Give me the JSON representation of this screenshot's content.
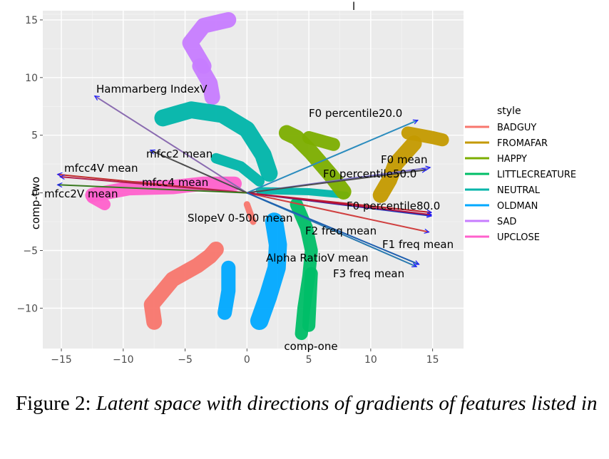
{
  "chart_data": {
    "type": "scatter",
    "xlabel": "comp-one",
    "ylabel": "comp-two",
    "xlim": [
      -16.5,
      17.5
    ],
    "ylim": [
      -13.5,
      15.8
    ],
    "xticks": [
      -15,
      -10,
      -5,
      0,
      5,
      10,
      15
    ],
    "yticks": [
      -10,
      -5,
      0,
      5,
      10,
      15
    ],
    "tick_labels_x": [
      "−15",
      "−10",
      "−5",
      "0",
      "5",
      "10",
      "15"
    ],
    "tick_labels_y": [
      "−10",
      "−5",
      "0",
      "5",
      "10",
      "15"
    ],
    "grid": true,
    "legend": {
      "title": "style",
      "position": "right",
      "entries": [
        {
          "name": "BADGUY",
          "color": "#F8766D"
        },
        {
          "name": "FROMAFAR",
          "color": "#C49A00"
        },
        {
          "name": "HAPPY",
          "color": "#7CAE00"
        },
        {
          "name": "LITTLECREATURE",
          "color": "#00BE67"
        },
        {
          "name": "NEUTRAL",
          "color": "#00B5AA"
        },
        {
          "name": "OLDMAN",
          "color": "#00A9FF"
        },
        {
          "name": "SAD",
          "color": "#C77CFF"
        },
        {
          "name": "UPCLOSE",
          "color": "#FF61CC"
        }
      ]
    },
    "clusters": [
      {
        "style": "SAD",
        "path": [
          [
            -3.5,
            11
          ],
          [
            -4.6,
            13
          ],
          [
            -3.5,
            14.5
          ],
          [
            -1.5,
            15
          ]
        ],
        "width": 1.2
      },
      {
        "style": "SAD",
        "path": [
          [
            -3.8,
            11
          ],
          [
            -3,
            9.5
          ],
          [
            -2.8,
            8.3
          ]
        ],
        "width": 1.2
      },
      {
        "style": "NEUTRAL",
        "path": [
          [
            -6.8,
            6.5
          ],
          [
            -4.5,
            7.2
          ],
          [
            -2,
            6.8
          ],
          [
            0,
            5.5
          ],
          [
            1.3,
            3.3
          ],
          [
            1.8,
            1.7
          ]
        ],
        "width": 1.3
      },
      {
        "style": "NEUTRAL",
        "path": [
          [
            -2.5,
            3
          ],
          [
            -0.5,
            2.3
          ],
          [
            1,
            1
          ]
        ],
        "width": 0.8
      },
      {
        "style": "NEUTRAL",
        "path": [
          [
            1,
            0.2
          ],
          [
            5,
            0.1
          ],
          [
            8,
            -0.2
          ]
        ],
        "width": 0.55
      },
      {
        "style": "UPCLOSE",
        "path": [
          [
            -12.5,
            -0.2
          ],
          [
            -9.5,
            0.4
          ],
          [
            -6,
            0.5
          ],
          [
            -3.5,
            0.8
          ],
          [
            -1,
            0.8
          ]
        ],
        "width": 1.1
      },
      {
        "style": "UPCLOSE",
        "path": [
          [
            -12.5,
            -0.4
          ],
          [
            -11.5,
            -1
          ]
        ],
        "width": 0.9
      },
      {
        "style": "HAPPY",
        "path": [
          [
            3.2,
            5.2
          ],
          [
            4,
            4.8
          ],
          [
            5.2,
            3.5
          ],
          [
            6.8,
            1.5
          ],
          [
            7.8,
            0.1
          ]
        ],
        "width": 1.2
      },
      {
        "style": "HAPPY",
        "path": [
          [
            5,
            4.8
          ],
          [
            7,
            4.2
          ]
        ],
        "width": 1.0
      },
      {
        "style": "FROMAFAR",
        "path": [
          [
            13,
            5.2
          ],
          [
            15,
            4.8
          ],
          [
            15.8,
            4.6
          ]
        ],
        "width": 1.0
      },
      {
        "style": "FROMAFAR",
        "path": [
          [
            13.5,
            4.3
          ],
          [
            12,
            2.5
          ],
          [
            11.5,
            1.1
          ],
          [
            10.8,
            -0.2
          ]
        ],
        "width": 1.2
      },
      {
        "style": "OLDMAN",
        "path": [
          [
            1,
            -11.1
          ],
          [
            1.7,
            -9
          ],
          [
            2.4,
            -6.5
          ],
          [
            2.5,
            -4.5
          ],
          [
            2.2,
            -2.5
          ]
        ],
        "width": 1.4
      },
      {
        "style": "OLDMAN",
        "path": [
          [
            -1.5,
            -6.5
          ],
          [
            -1.5,
            -8.5
          ],
          [
            -1.8,
            -10.4
          ]
        ],
        "width": 1.1
      },
      {
        "style": "LITTLECREATURE",
        "path": [
          [
            4.4,
            -12.2
          ],
          [
            4.6,
            -10
          ],
          [
            5,
            -7.2
          ],
          [
            5.2,
            -5
          ],
          [
            4.8,
            -3
          ],
          [
            4,
            -1
          ]
        ],
        "width": 1.0
      },
      {
        "style": "LITTLECREATURE",
        "path": [
          [
            5.2,
            -7
          ],
          [
            5,
            -11.5
          ]
        ],
        "width": 1.0
      },
      {
        "style": "BADGUY",
        "path": [
          [
            -7.5,
            -11.2
          ],
          [
            -7.7,
            -9.7
          ],
          [
            -6,
            -7.5
          ],
          [
            -4,
            -6.3
          ],
          [
            -3,
            -5.5
          ],
          [
            -2.5,
            -4.9
          ]
        ],
        "width": 1.2
      },
      {
        "style": "BADGUY",
        "path": [
          [
            0,
            -1
          ],
          [
            0.5,
            -2.5
          ]
        ],
        "width": 0.5
      }
    ],
    "features": [
      {
        "name": "Hammarberg IndexV",
        "x": -12.3,
        "y": 8.4
      },
      {
        "name": "F0 percentile20.0",
        "x": 13.8,
        "y": 6.3
      },
      {
        "name": "mfcc2 mean",
        "x": -7.8,
        "y": 3.7
      },
      {
        "name": "F0 mean",
        "x": 14.8,
        "y": 2.2
      },
      {
        "name": "mfcc4V mean",
        "x": -15.3,
        "y": 1.6
      },
      {
        "name": "F0 percentile50.0",
        "x": 14.5,
        "y": 2.0
      },
      {
        "name": "mfcc4 mean",
        "x": -15.1,
        "y": 1.4
      },
      {
        "name": "mfcc2V mean",
        "x": -15.3,
        "y": 0.7
      },
      {
        "name": "F0 percentile80.0",
        "x": 14.9,
        "y": -1.7
      },
      {
        "name": "SlopeV 0-500 mean",
        "x": 14.9,
        "y": -2.0
      },
      {
        "name": "F2 freq mean",
        "x": 14.7,
        "y": -3.4
      },
      {
        "name": "F1 freq mean",
        "x": 14.9,
        "y": -1.9
      },
      {
        "name": "Alpha RatioV mean",
        "x": 13.7,
        "y": -6.4
      },
      {
        "name": "F3 freq mean",
        "x": 13.9,
        "y": -6.2
      }
    ],
    "title_fragment": "l"
  },
  "caption": {
    "prefix": "Figure 2: ",
    "italic": "Latent space with directions of gradients of features listed in"
  }
}
